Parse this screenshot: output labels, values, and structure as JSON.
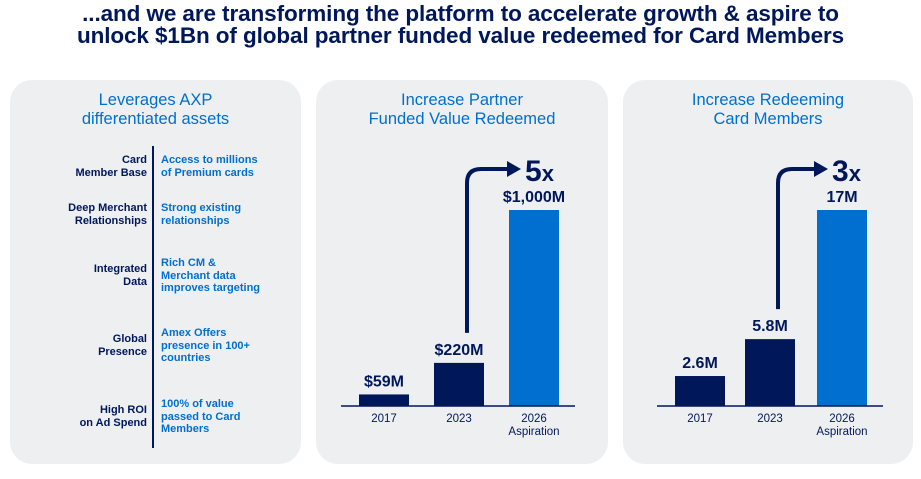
{
  "headline": {
    "line1": "...and we are transforming the platform to accelerate growth & aspire to",
    "line2": "unlock $1Bn of global partner funded value redeemed for Card Members"
  },
  "assets": {
    "title_line1": "Leverages AXP",
    "title_line2": "differentiated assets",
    "rows": [
      {
        "label": [
          "Card",
          "Member Base"
        ],
        "desc": [
          "Access to millions",
          "of Premium cards"
        ]
      },
      {
        "label": [
          "Deep Merchant",
          "Relationships"
        ],
        "desc": [
          "Strong existing",
          "relationships"
        ]
      },
      {
        "label": [
          "Integrated",
          "Data"
        ],
        "desc": [
          "Rich CM &",
          "Merchant data",
          "improves targeting"
        ]
      },
      {
        "label": [
          "Global",
          "Presence"
        ],
        "desc": [
          "Amex Offers",
          "presence in 100+",
          "countries"
        ]
      },
      {
        "label": [
          "High ROI",
          "on Ad Spend"
        ],
        "desc": [
          "100% of value",
          "passed to Card",
          "Members"
        ]
      }
    ]
  },
  "colors": {
    "dark_navy": "#00175a",
    "bright_blue": "#006fcf",
    "card_bg": "#eeeff1"
  },
  "chart_data": [
    {
      "type": "bar",
      "title_line1": "Increase Partner",
      "title_line2": "Funded Value Redeemed",
      "categories": [
        "2017",
        "2023",
        "2026 Aspiration"
      ],
      "tick_lines": [
        [
          "2017"
        ],
        [
          "2023"
        ],
        [
          "2026",
          "Aspiration"
        ]
      ],
      "values": [
        59,
        220,
        1000
      ],
      "value_labels": [
        "$59M",
        "$220M",
        "$1,000M"
      ],
      "bar_colors": [
        "#00175a",
        "#00175a",
        "#006fcf"
      ],
      "multiplier": {
        "base": "5",
        "suffix": "x"
      },
      "ylim": [
        0,
        1000
      ]
    },
    {
      "type": "bar",
      "title_line1": "Increase Redeeming",
      "title_line2": "Card Members",
      "categories": [
        "2017",
        "2023",
        "2026 Aspiration"
      ],
      "tick_lines": [
        [
          "2017"
        ],
        [
          "2023"
        ],
        [
          "2026",
          "Aspiration"
        ]
      ],
      "values": [
        2.6,
        5.8,
        17
      ],
      "value_labels": [
        "2.6M",
        "5.8M",
        "17M"
      ],
      "bar_colors": [
        "#00175a",
        "#00175a",
        "#006fcf"
      ],
      "multiplier": {
        "base": "3",
        "suffix": "x"
      },
      "ylim": [
        0,
        17
      ]
    }
  ]
}
